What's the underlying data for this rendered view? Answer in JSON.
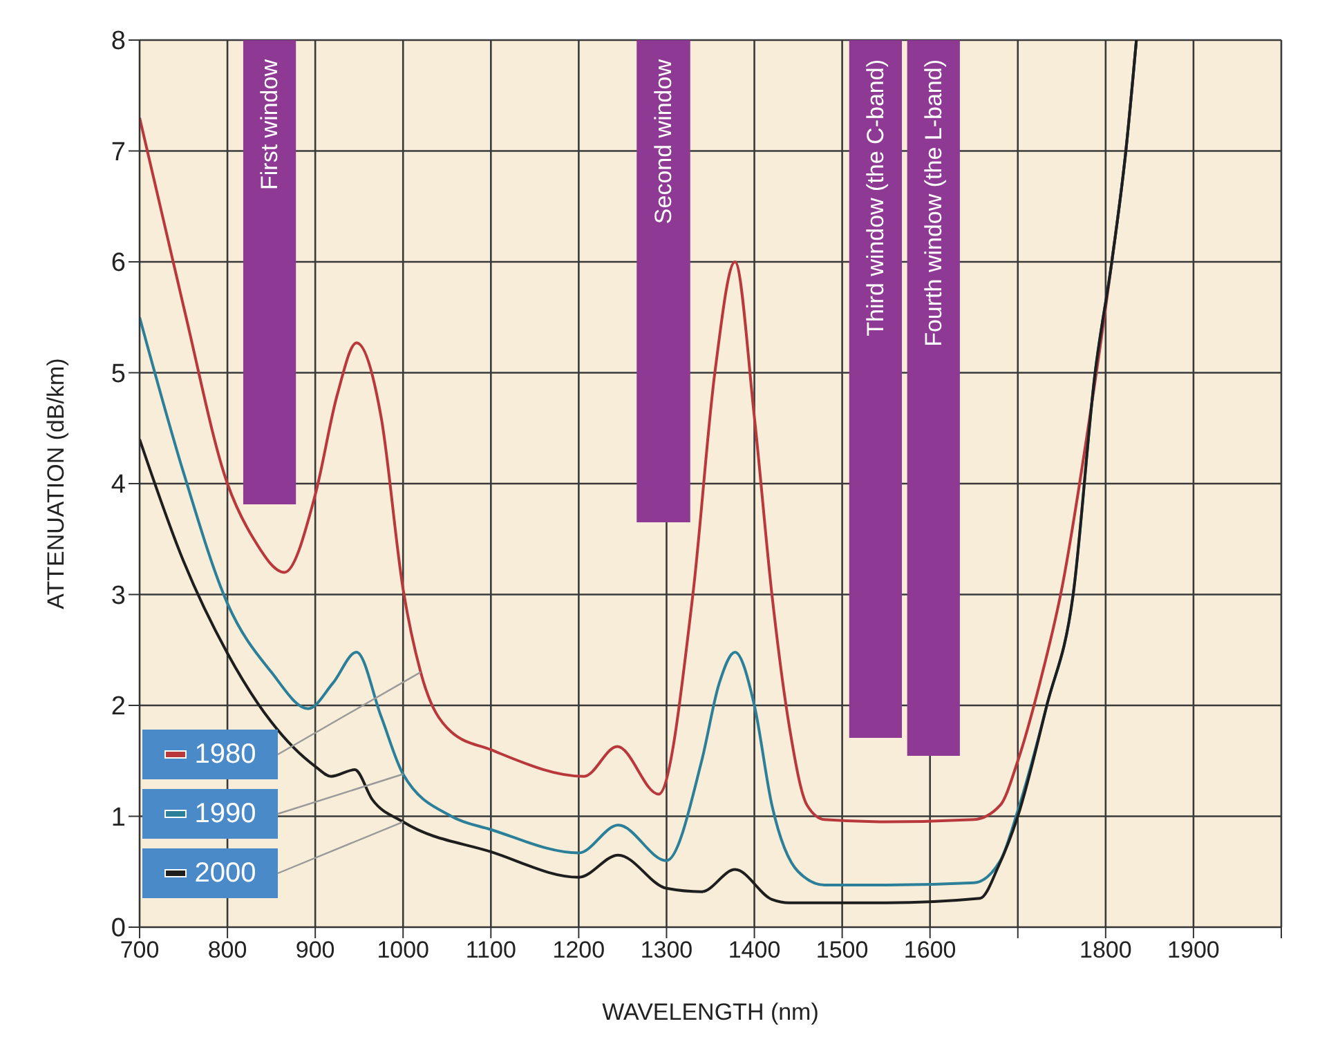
{
  "chart_data": {
    "type": "line",
    "xlabel": "WAVELENGTH (nm)",
    "ylabel": "ATTENUATION (dB/km)",
    "xlim": [
      700,
      2000
    ],
    "ylim": [
      0,
      8
    ],
    "xticks": [
      700,
      800,
      900,
      1000,
      1100,
      1200,
      1300,
      1400,
      1500,
      1600,
      {
        "value": 1700,
        "label": null
      },
      1800,
      1900,
      {
        "value": 2000,
        "label": null
      }
    ],
    "yticks": [
      0,
      1,
      2,
      3,
      4,
      5,
      6,
      7,
      8
    ],
    "grid": true,
    "legend": "bottom left",
    "marker": "none",
    "line_style": "solid",
    "series": [
      {
        "name": "1980",
        "color": "#b8383c",
        "x": [
          700,
          750,
          800,
          830,
          865,
          900,
          925,
          947,
          975,
          1000,
          1020,
          1055,
          1100,
          1206,
          1244,
          1291,
          1330,
          1355,
          1378,
          1400,
          1420,
          1440,
          1460,
          1480,
          1550,
          1650,
          1680,
          1700,
          1725,
          1750,
          1780,
          1807,
          1823,
          1835
        ],
        "values": [
          7.3,
          5.6,
          4.0,
          3.5,
          3.2,
          3.9,
          4.8,
          5.27,
          4.6,
          3.05,
          2.3,
          1.76,
          1.6,
          1.36,
          1.63,
          1.2,
          3.0,
          5.0,
          6.0,
          4.6,
          3.0,
          1.8,
          1.1,
          0.97,
          0.95,
          0.97,
          1.1,
          1.5,
          2.2,
          3.05,
          4.5,
          6.0,
          7.0,
          8.0
        ]
      },
      {
        "name": "1990",
        "color": "#2b7f98",
        "x": [
          700,
          750,
          800,
          850,
          892,
          920,
          947,
          975,
          1000,
          1055,
          1100,
          1200,
          1245,
          1300,
          1340,
          1360,
          1378,
          1400,
          1420,
          1450,
          1480,
          1550,
          1650,
          1680,
          1700,
          1733,
          1763,
          1788,
          1807,
          1823,
          1835
        ],
        "values": [
          5.5,
          4.1,
          2.92,
          2.3,
          1.97,
          2.2,
          2.48,
          1.9,
          1.38,
          1.0,
          0.88,
          0.67,
          0.92,
          0.6,
          1.5,
          2.2,
          2.48,
          2.0,
          1.1,
          0.5,
          0.38,
          0.38,
          0.4,
          0.6,
          1.05,
          2.0,
          3.0,
          5.0,
          6.0,
          7.0,
          8.0
        ]
      },
      {
        "name": "2000",
        "color": "#1e1e1e",
        "x": [
          700,
          750,
          800,
          850,
          900,
          918,
          945,
          965,
          1000,
          1100,
          1200,
          1245,
          1300,
          1340,
          1378,
          1420,
          1440,
          1550,
          1657,
          1678,
          1700,
          1733,
          1763,
          1788,
          1807,
          1823,
          1835
        ],
        "values": [
          4.4,
          3.3,
          2.47,
          1.85,
          1.45,
          1.36,
          1.42,
          1.15,
          0.95,
          0.68,
          0.45,
          0.65,
          0.35,
          0.32,
          0.52,
          0.25,
          0.22,
          0.22,
          0.26,
          0.55,
          1.0,
          2.0,
          3.0,
          5.0,
          6.0,
          7.0,
          8.0
        ]
      }
    ],
    "bands": [
      {
        "axis": "x",
        "from": 818,
        "to": 878,
        "label": "First window",
        "color": "#8e3a94"
      },
      {
        "axis": "x",
        "from": 1266,
        "to": 1327,
        "label": "Second window",
        "color": "#8e3a94"
      },
      {
        "axis": "x",
        "from": 1508,
        "to": 1568,
        "label": "Third window (the C-band)",
        "color": "#8e3a94"
      },
      {
        "axis": "x",
        "from": 1574,
        "to": 1634,
        "label": "Fourth window (the L-band)",
        "color": "#8e3a94"
      }
    ]
  }
}
